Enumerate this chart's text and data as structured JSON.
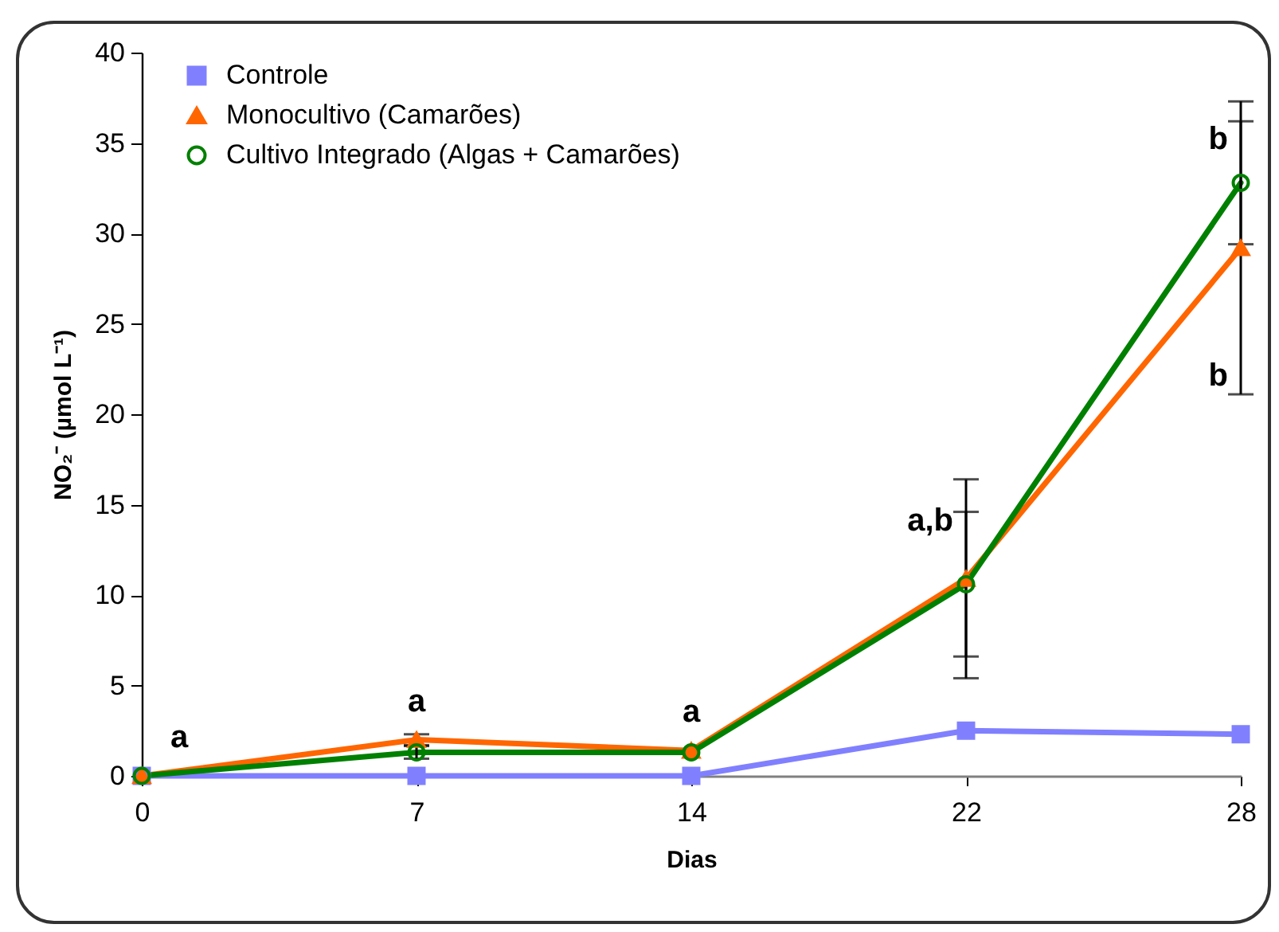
{
  "chart_data": {
    "type": "line",
    "xlabel": "Dias",
    "ylabel": "NO₂⁻ (µmol L⁻¹)",
    "categories": [
      "0",
      "7",
      "14",
      "22",
      "28"
    ],
    "ylim": [
      0,
      40
    ],
    "yticks": [
      0,
      5,
      10,
      15,
      20,
      25,
      30,
      35,
      40
    ],
    "grid": false,
    "legend": "top left",
    "series": [
      {
        "name": "Controle",
        "color": "#8080ff",
        "marker": "square",
        "values": [
          0,
          0,
          0,
          2.5,
          2.3
        ]
      },
      {
        "name": "Monocultivo (Camarões)",
        "color": "#ff6600",
        "marker": "triangle",
        "values": [
          0,
          2.0,
          1.4,
          10.9,
          29.2
        ],
        "errors": [
          null,
          0.3,
          null,
          5.5,
          8.1
        ]
      },
      {
        "name": "Cultivo Integrado (Algas + Camarões)",
        "color": "#008000",
        "marker": "circle",
        "values": [
          0,
          1.3,
          1.3,
          10.6,
          32.8
        ],
        "errors": [
          null,
          0.35,
          null,
          4.0,
          3.4
        ]
      }
    ],
    "annotations": [
      {
        "text": "a",
        "x": "0",
        "y": 0
      },
      {
        "text": "a",
        "x": "7",
        "y": 2.0
      },
      {
        "text": "a",
        "x": "14",
        "y": 1.4
      },
      {
        "text": "a,b",
        "x": "22",
        "y": 14.1
      },
      {
        "text": "b",
        "x": "28",
        "y": 35.2
      },
      {
        "text": "b",
        "x": "28",
        "y": 22.1
      }
    ]
  }
}
